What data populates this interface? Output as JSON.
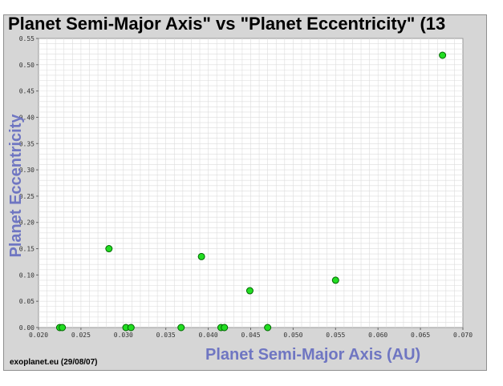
{
  "chart_data": {
    "type": "scatter",
    "title": "Planet Semi-Major Axis\"  vs \"Planet Eccentricity\" (13",
    "xlabel": "Planet Semi-Major Axis (AU)",
    "ylabel": "Planet Eccentricity",
    "xlim": [
      0.02,
      0.07
    ],
    "ylim": [
      0,
      0.55
    ],
    "grid": true,
    "x_ticks": [
      "0.020",
      "0.025",
      "0.030",
      "0.035",
      "0.040",
      "0.045",
      "0.050",
      "0.055",
      "0.060",
      "0.065",
      "0.070"
    ],
    "y_ticks": [
      "0.00",
      "0.05",
      "0.10",
      "0.15",
      "0.20",
      "0.25",
      "0.30",
      "0.35",
      "0.40",
      "0.45",
      "0.50",
      "0.55"
    ],
    "points": [
      {
        "x": 0.0225,
        "y": 0.0
      },
      {
        "x": 0.0228,
        "y": 0.0
      },
      {
        "x": 0.0283,
        "y": 0.15
      },
      {
        "x": 0.0303,
        "y": 0.0
      },
      {
        "x": 0.0309,
        "y": 0.0
      },
      {
        "x": 0.0368,
        "y": 0.0
      },
      {
        "x": 0.0392,
        "y": 0.135
      },
      {
        "x": 0.0415,
        "y": 0.0
      },
      {
        "x": 0.0419,
        "y": 0.0
      },
      {
        "x": 0.0449,
        "y": 0.07
      },
      {
        "x": 0.047,
        "y": 0.0
      },
      {
        "x": 0.055,
        "y": 0.09
      },
      {
        "x": 0.0676,
        "y": 0.518
      }
    ],
    "marker_color": "#22dd22",
    "marker_edge": "#006600"
  },
  "footer": {
    "credit": "exoplanet.eu (29/08/07)"
  },
  "colors": {
    "frame": "#d6d6d6",
    "plot_bg": "#ffffff",
    "grid": "#dcdcdc",
    "axis_label": "#6f76c2"
  }
}
